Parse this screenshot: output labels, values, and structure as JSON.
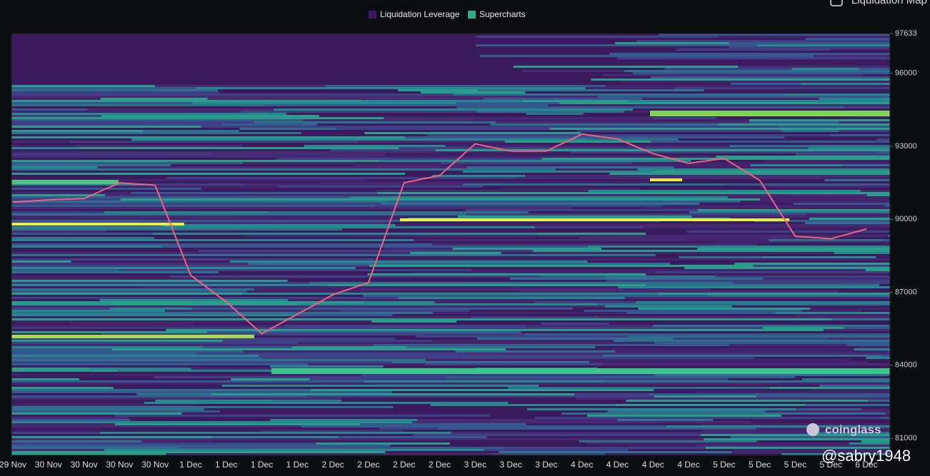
{
  "chart_data": {
    "type": "line",
    "legend": [
      {
        "name": "Liquidation Leverage",
        "color": "#3d1860"
      },
      {
        "name": "Supercharts",
        "color": "#26b38c"
      }
    ],
    "toggle_label": "Liquidation Map",
    "categories": [
      "29 Nov",
      "30 Nov",
      "30 Nov",
      "30 Nov",
      "30 Nov",
      "1 Dec",
      "1 Dec",
      "1 Dec",
      "1 Dec",
      "2 Dec",
      "2 Dec",
      "2 Dec",
      "2 Dec",
      "3 Dec",
      "3 Dec",
      "3 Dec",
      "4 Dec",
      "4 Dec",
      "4 Dec",
      "4 Dec",
      "5 Dec",
      "5 Dec",
      "5 Dec",
      "5 Dec",
      "6 Dec"
    ],
    "values": [
      90700,
      90800,
      90850,
      91500,
      91400,
      87700,
      86600,
      85300,
      86100,
      86900,
      87400,
      91500,
      91800,
      93100,
      92800,
      92800,
      93500,
      93300,
      92700,
      92300,
      92500,
      91600,
      89300,
      89200,
      89600
    ],
    "color": "#f0637e",
    "ylim": [
      80300,
      97633
    ],
    "yticks": [
      81000,
      84000,
      87000,
      90000,
      93000,
      96000,
      97633
    ],
    "watermark": "coinglass",
    "user_tag": "@sabry1948"
  }
}
